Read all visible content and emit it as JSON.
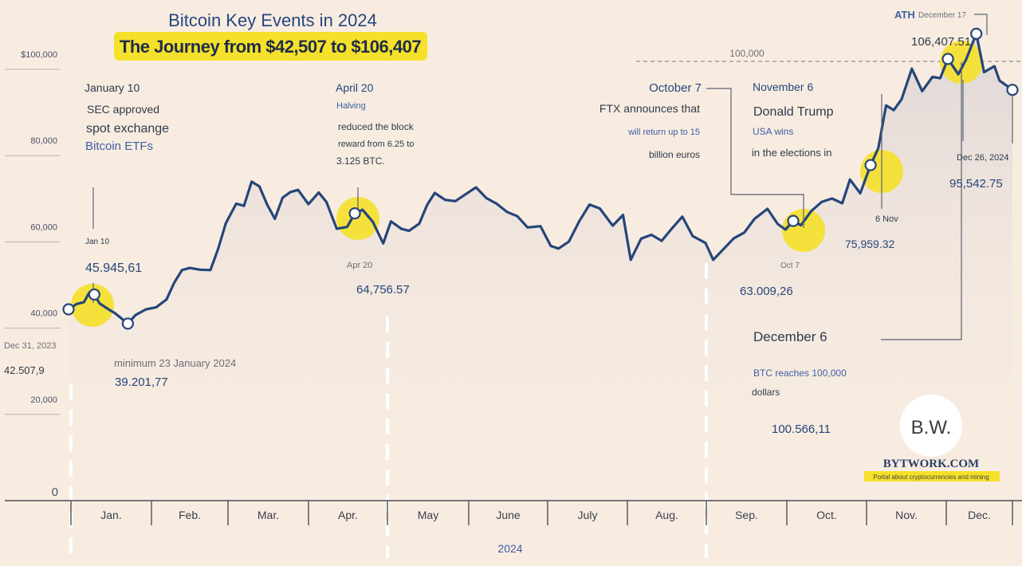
{
  "chart_data": {
    "type": "line",
    "title": "Bitcoin Key Events in 2024",
    "subtitle": "The Journey from $42,507 to $106,407",
    "xlabel": "2024",
    "months": [
      "Jan.",
      "Feb.",
      "Mar.",
      "Apr.",
      "May",
      "June",
      "July",
      "Aug.",
      "Sep.",
      "Oct.",
      "Nov.",
      "Dec."
    ],
    "y_ticks": [
      {
        "value": 0,
        "label": "0"
      },
      {
        "value": 20000,
        "label": "20,000"
      },
      {
        "value": 40000,
        "label": "40,000"
      },
      {
        "value": 60000,
        "label": "60,000"
      },
      {
        "value": 80000,
        "label": "80,000"
      },
      {
        "value": 100000,
        "label": "$100,000"
      }
    ],
    "ylim": [
      0,
      100000
    ],
    "reference_line": {
      "value": 100000,
      "label": "100,000"
    },
    "series": [
      {
        "x": [
          "2023-12-31",
          "2024-01-03",
          "2024-01-06",
          "2024-01-08",
          "2024-01-10",
          "2024-01-12",
          "2024-01-15",
          "2024-01-18",
          "2024-01-23",
          "2024-01-26",
          "2024-01-30",
          "2024-02-03",
          "2024-02-07",
          "2024-02-10",
          "2024-02-13",
          "2024-02-16",
          "2024-02-20",
          "2024-02-24",
          "2024-02-27",
          "2024-03-01",
          "2024-03-05",
          "2024-03-08",
          "2024-03-11",
          "2024-03-14",
          "2024-03-17",
          "2024-03-20",
          "2024-03-23",
          "2024-03-26",
          "2024-03-29",
          "2024-04-02",
          "2024-04-06",
          "2024-04-09",
          "2024-04-13",
          "2024-04-17",
          "2024-04-20",
          "2024-04-23",
          "2024-04-27",
          "2024-05-01",
          "2024-05-04",
          "2024-05-08",
          "2024-05-11",
          "2024-05-15",
          "2024-05-18",
          "2024-05-21",
          "2024-05-25",
          "2024-05-29",
          "2024-06-02",
          "2024-06-06",
          "2024-06-10",
          "2024-06-14",
          "2024-06-18",
          "2024-06-22",
          "2024-06-26",
          "2024-07-01",
          "2024-07-05",
          "2024-07-08",
          "2024-07-12",
          "2024-07-16",
          "2024-07-20",
          "2024-07-24",
          "2024-07-29",
          "2024-08-02",
          "2024-08-05",
          "2024-08-09",
          "2024-08-13",
          "2024-08-17",
          "2024-08-21",
          "2024-08-25",
          "2024-08-29",
          "2024-09-03",
          "2024-09-06",
          "2024-09-10",
          "2024-09-14",
          "2024-09-18",
          "2024-09-22",
          "2024-09-27",
          "2024-10-01",
          "2024-10-04",
          "2024-10-07",
          "2024-10-10",
          "2024-10-14",
          "2024-10-18",
          "2024-10-22",
          "2024-10-26",
          "2024-10-29",
          "2024-11-02",
          "2024-11-06",
          "2024-11-09",
          "2024-11-12",
          "2024-11-15",
          "2024-11-18",
          "2024-11-22",
          "2024-11-26",
          "2024-11-30",
          "2024-12-03",
          "2024-12-06",
          "2024-12-10",
          "2024-12-13",
          "2024-12-17",
          "2024-12-20",
          "2024-12-24",
          "2024-12-26",
          "2024-12-31"
        ],
        "y": [
          42508,
          43700,
          44200,
          46400,
          45946,
          43900,
          42700,
          41600,
          39202,
          41200,
          42500,
          43000,
          44800,
          48700,
          51600,
          52100,
          51700,
          51600,
          56500,
          62500,
          67000,
          66500,
          72100,
          71000,
          66800,
          63500,
          68400,
          69700,
          70200,
          66900,
          69600,
          67400,
          61200,
          61600,
          64757,
          65600,
          62800,
          57800,
          62900,
          61200,
          60700,
          62400,
          66700,
          69500,
          67900,
          67600,
          69200,
          70800,
          68300,
          67000,
          65100,
          64100,
          61500,
          61800,
          57200,
          56600,
          58200,
          62900,
          66800,
          65900,
          61900,
          64400,
          54000,
          58900,
          59800,
          58400,
          61300,
          64000,
          59500,
          57900,
          54000,
          56500,
          59000,
          60300,
          63500,
          65800,
          62300,
          61000,
          63009,
          62000,
          65300,
          67400,
          68200,
          67100,
          72600,
          69400,
          75959,
          79900,
          89800,
          88700,
          91200,
          98300,
          93100,
          96400,
          96100,
          100566,
          97000,
          100400,
          106407,
          97500,
          98900,
          95543,
          93400
        ]
      }
    ],
    "ath": {
      "label": "ATH",
      "date": "December 17",
      "value": "106,407.51"
    },
    "events": {
      "jan10": {
        "date": "January 10",
        "line1": "SEC approved",
        "line2": "spot exchange",
        "line3": "Bitcoin ETFs",
        "tag": "Jan 10",
        "value": "45.945,61"
      },
      "apr20": {
        "date": "April 20",
        "sub": "Halving",
        "line1": "reduced the block",
        "line2": "reward from 6.25 to",
        "line3": "3.125 BTC.",
        "tag": "Apr 20",
        "value": "64,756.57"
      },
      "oct7": {
        "date": "October 7",
        "line1": "FTX announces that",
        "line2": "will return up to 15",
        "line3": "billion euros",
        "tag": "Oct 7",
        "value": "63.009,26"
      },
      "nov6": {
        "date": "November 6",
        "line1": "Donald Trump",
        "line2": "USA wins",
        "line3": "in the elections in",
        "tag": "6 Nov",
        "value": "75,959.32"
      },
      "dec6": {
        "date": "December 6",
        "line1": "BTC reaches 100,000",
        "line2": "dollars",
        "value": "100.566,11"
      },
      "dec26": {
        "tag": "Dec 26, 2024",
        "value": "95,542.75"
      },
      "start": {
        "tag": "Dec 31, 2023",
        "value": "42.507,9"
      },
      "min": {
        "label": "minimum 23 January 2024",
        "value": "39.201,77"
      }
    },
    "colors": {
      "line": "#25467a",
      "highlight": "#f5e02a",
      "background": "#f8ece1",
      "area": "#e7ddd8"
    }
  },
  "brand": {
    "badge": "B.W.",
    "name": "BYTWORK.COM",
    "tagline": "Portal about cryptocurrencies and mining"
  }
}
